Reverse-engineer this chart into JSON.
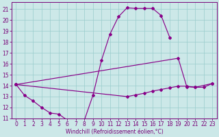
{
  "xlabel": "Windchill (Refroidissement éolien,°C)",
  "background_color": "#cce8e8",
  "line_color": "#880088",
  "grid_color": "#99cccc",
  "xlim_min": -0.5,
  "xlim_max": 23.5,
  "ylim_min": 11.0,
  "ylim_max": 21.6,
  "yticks": [
    11,
    12,
    13,
    14,
    15,
    16,
    17,
    18,
    19,
    20,
    21
  ],
  "xticks": [
    0,
    1,
    2,
    3,
    4,
    5,
    6,
    7,
    8,
    9,
    10,
    11,
    12,
    13,
    14,
    15,
    16,
    17,
    18,
    19,
    20,
    21,
    22,
    23
  ],
  "curve1_x": [
    0,
    1,
    2,
    3,
    4,
    5,
    6,
    7,
    8,
    9,
    10,
    11,
    12,
    13,
    14,
    15,
    16,
    17,
    18
  ],
  "curve1_y": [
    14.1,
    13.1,
    12.6,
    12.0,
    11.5,
    11.4,
    10.85,
    10.8,
    10.85,
    13.1,
    16.3,
    18.7,
    20.3,
    21.1,
    21.05,
    21.05,
    21.05,
    20.4,
    18.4
  ],
  "curve2_x": [
    0,
    19,
    20,
    21,
    23
  ],
  "curve2_y": [
    14.1,
    16.5,
    13.9,
    13.85,
    14.2
  ],
  "curve3_x": [
    0,
    13,
    14,
    15,
    16,
    17,
    18,
    19,
    20,
    21,
    22,
    23
  ],
  "curve3_y": [
    14.1,
    13.0,
    13.15,
    13.3,
    13.5,
    13.65,
    13.8,
    13.95,
    13.95,
    13.85,
    13.85,
    14.2
  ],
  "tick_fontsize": 5.5,
  "label_fontsize": 5.5,
  "tick_color": "#770077",
  "spine_color": "#770077"
}
